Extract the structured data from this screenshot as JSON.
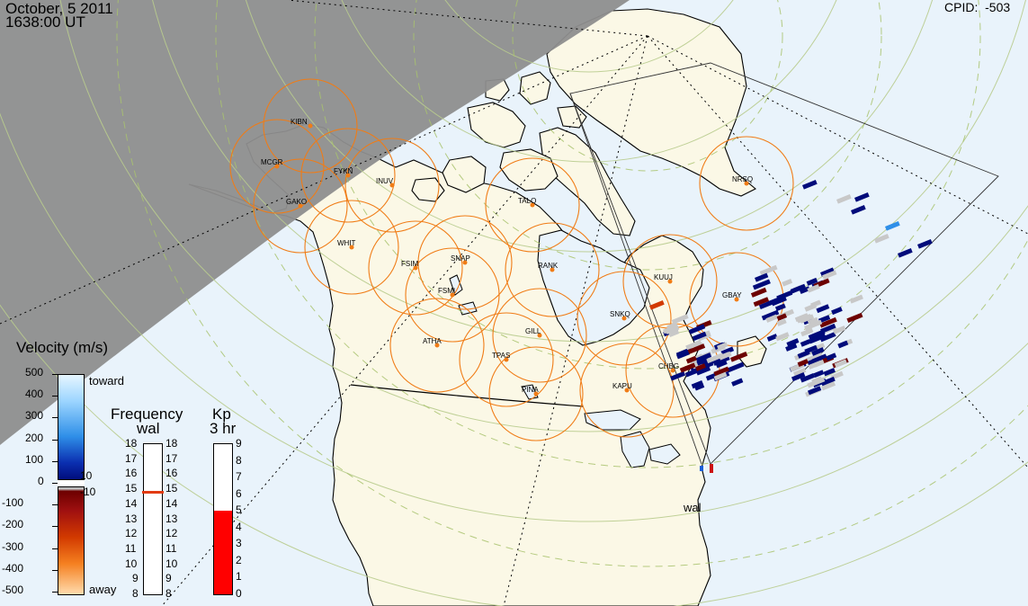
{
  "header": {
    "date": "October, 5 2011",
    "time": "1638:00 UT",
    "cpid_label": "CPID:",
    "cpid_value": "-503"
  },
  "stations": [
    {
      "code": "KIBN"
    },
    {
      "code": "MCGR"
    },
    {
      "code": "FYKN"
    },
    {
      "code": "INUV"
    },
    {
      "code": "GAKO"
    },
    {
      "code": "WHIT"
    },
    {
      "code": "FSIM"
    },
    {
      "code": "SNAP"
    },
    {
      "code": "FSMI"
    },
    {
      "code": "TALO"
    },
    {
      "code": "RANK"
    },
    {
      "code": "NRSQ"
    },
    {
      "code": "KUUJ"
    },
    {
      "code": "GBAY"
    },
    {
      "code": "SNKQ"
    },
    {
      "code": "GILL"
    },
    {
      "code": "ATHA"
    },
    {
      "code": "TPAS"
    },
    {
      "code": "PINA"
    },
    {
      "code": "KAPU"
    },
    {
      "code": "CHBG"
    }
  ],
  "radar_label": "wal",
  "velocity_scale": {
    "title": "Velocity (m/s)",
    "ticks": [
      "500",
      "400",
      "300",
      "200",
      "100",
      "0",
      "-100",
      "-200",
      "-300",
      "-400",
      "-500"
    ],
    "toward": "toward",
    "away": "away",
    "threshold_pos": "10",
    "threshold_neg": "-10",
    "colors": {
      "toward_top": "#dff1ff",
      "toward_mid": "#2f8fe8",
      "toward_low": "#000b7a",
      "away_low": "#6d0000",
      "away_mid": "#d23a00",
      "away_top": "#ffdcae",
      "ground": "#c8c8c8"
    }
  },
  "frequency_scale": {
    "title": "Frequency",
    "subtitle": "wal",
    "ticks": [
      "18",
      "17",
      "16",
      "15",
      "14",
      "13",
      "12",
      "11",
      "10",
      "9",
      "8"
    ],
    "current_mhz": 14.8,
    "marker_color": "#e23b12"
  },
  "kp_scale": {
    "title": "Kp",
    "subtitle": "3 hr",
    "ticks": [
      "9",
      "8",
      "7",
      "6",
      "5",
      "4",
      "3",
      "2",
      "1",
      "0"
    ],
    "value": 5,
    "fill_color": "#ff0000"
  },
  "colors": {
    "land": "#fbf8e6",
    "ocean_day": "#e9f3fb",
    "night": "#8e8e8e",
    "fov_circle": "#f07c16",
    "station_dot": "#f07c16",
    "latitude_line": "#b9cc8e"
  }
}
